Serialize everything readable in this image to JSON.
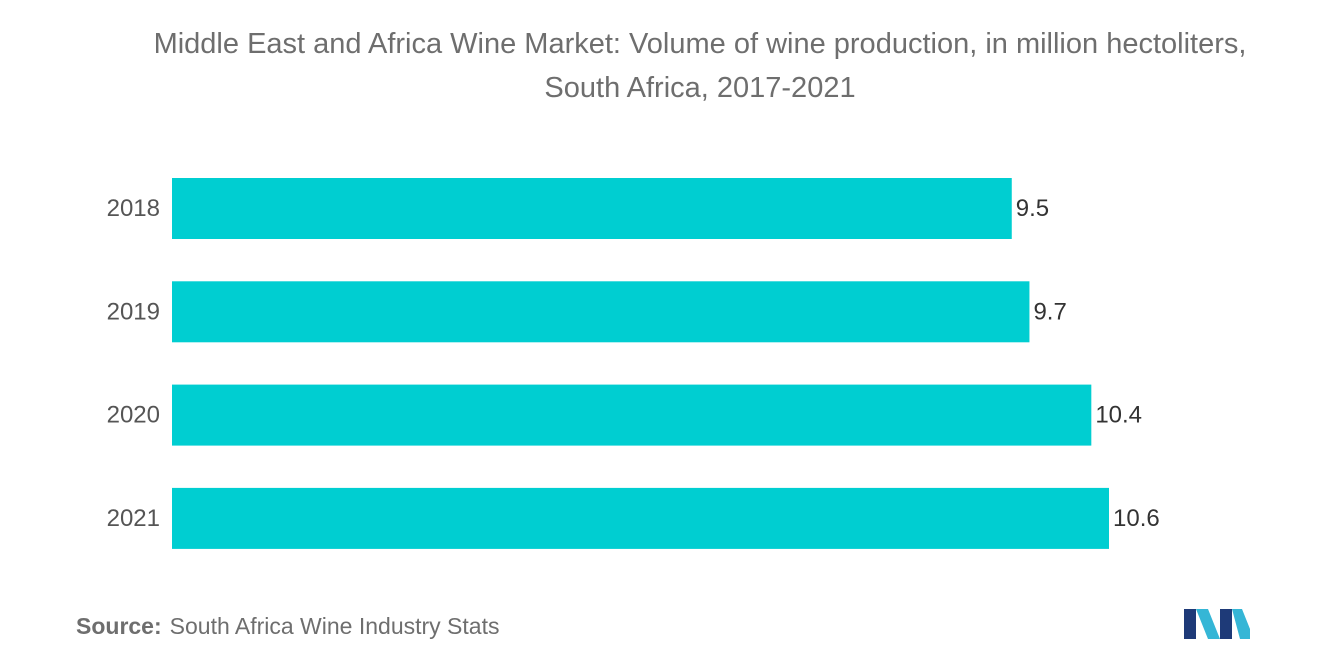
{
  "chart_data": {
    "type": "bar",
    "orientation": "horizontal",
    "title": "Middle East and Africa Wine Market: Volume of wine production, in million hectoliters, South Africa, 2017-2021",
    "categories": [
      "2018",
      "2019",
      "2020",
      "2021"
    ],
    "values": [
      9.5,
      9.7,
      10.4,
      10.6
    ],
    "value_labels": [
      "9.5",
      "9.7",
      "10.4",
      "10.6"
    ],
    "xlim": [
      0,
      10.6
    ],
    "grid": false,
    "legend": "none",
    "bar_color": "#00ced1"
  },
  "source": {
    "label": "Source:",
    "text": "South Africa Wine Industry Stats"
  },
  "logo": {
    "icon": "mordor-intelligence-logo-icon",
    "colors": [
      "#1e3a78",
      "#35b6d6"
    ]
  }
}
